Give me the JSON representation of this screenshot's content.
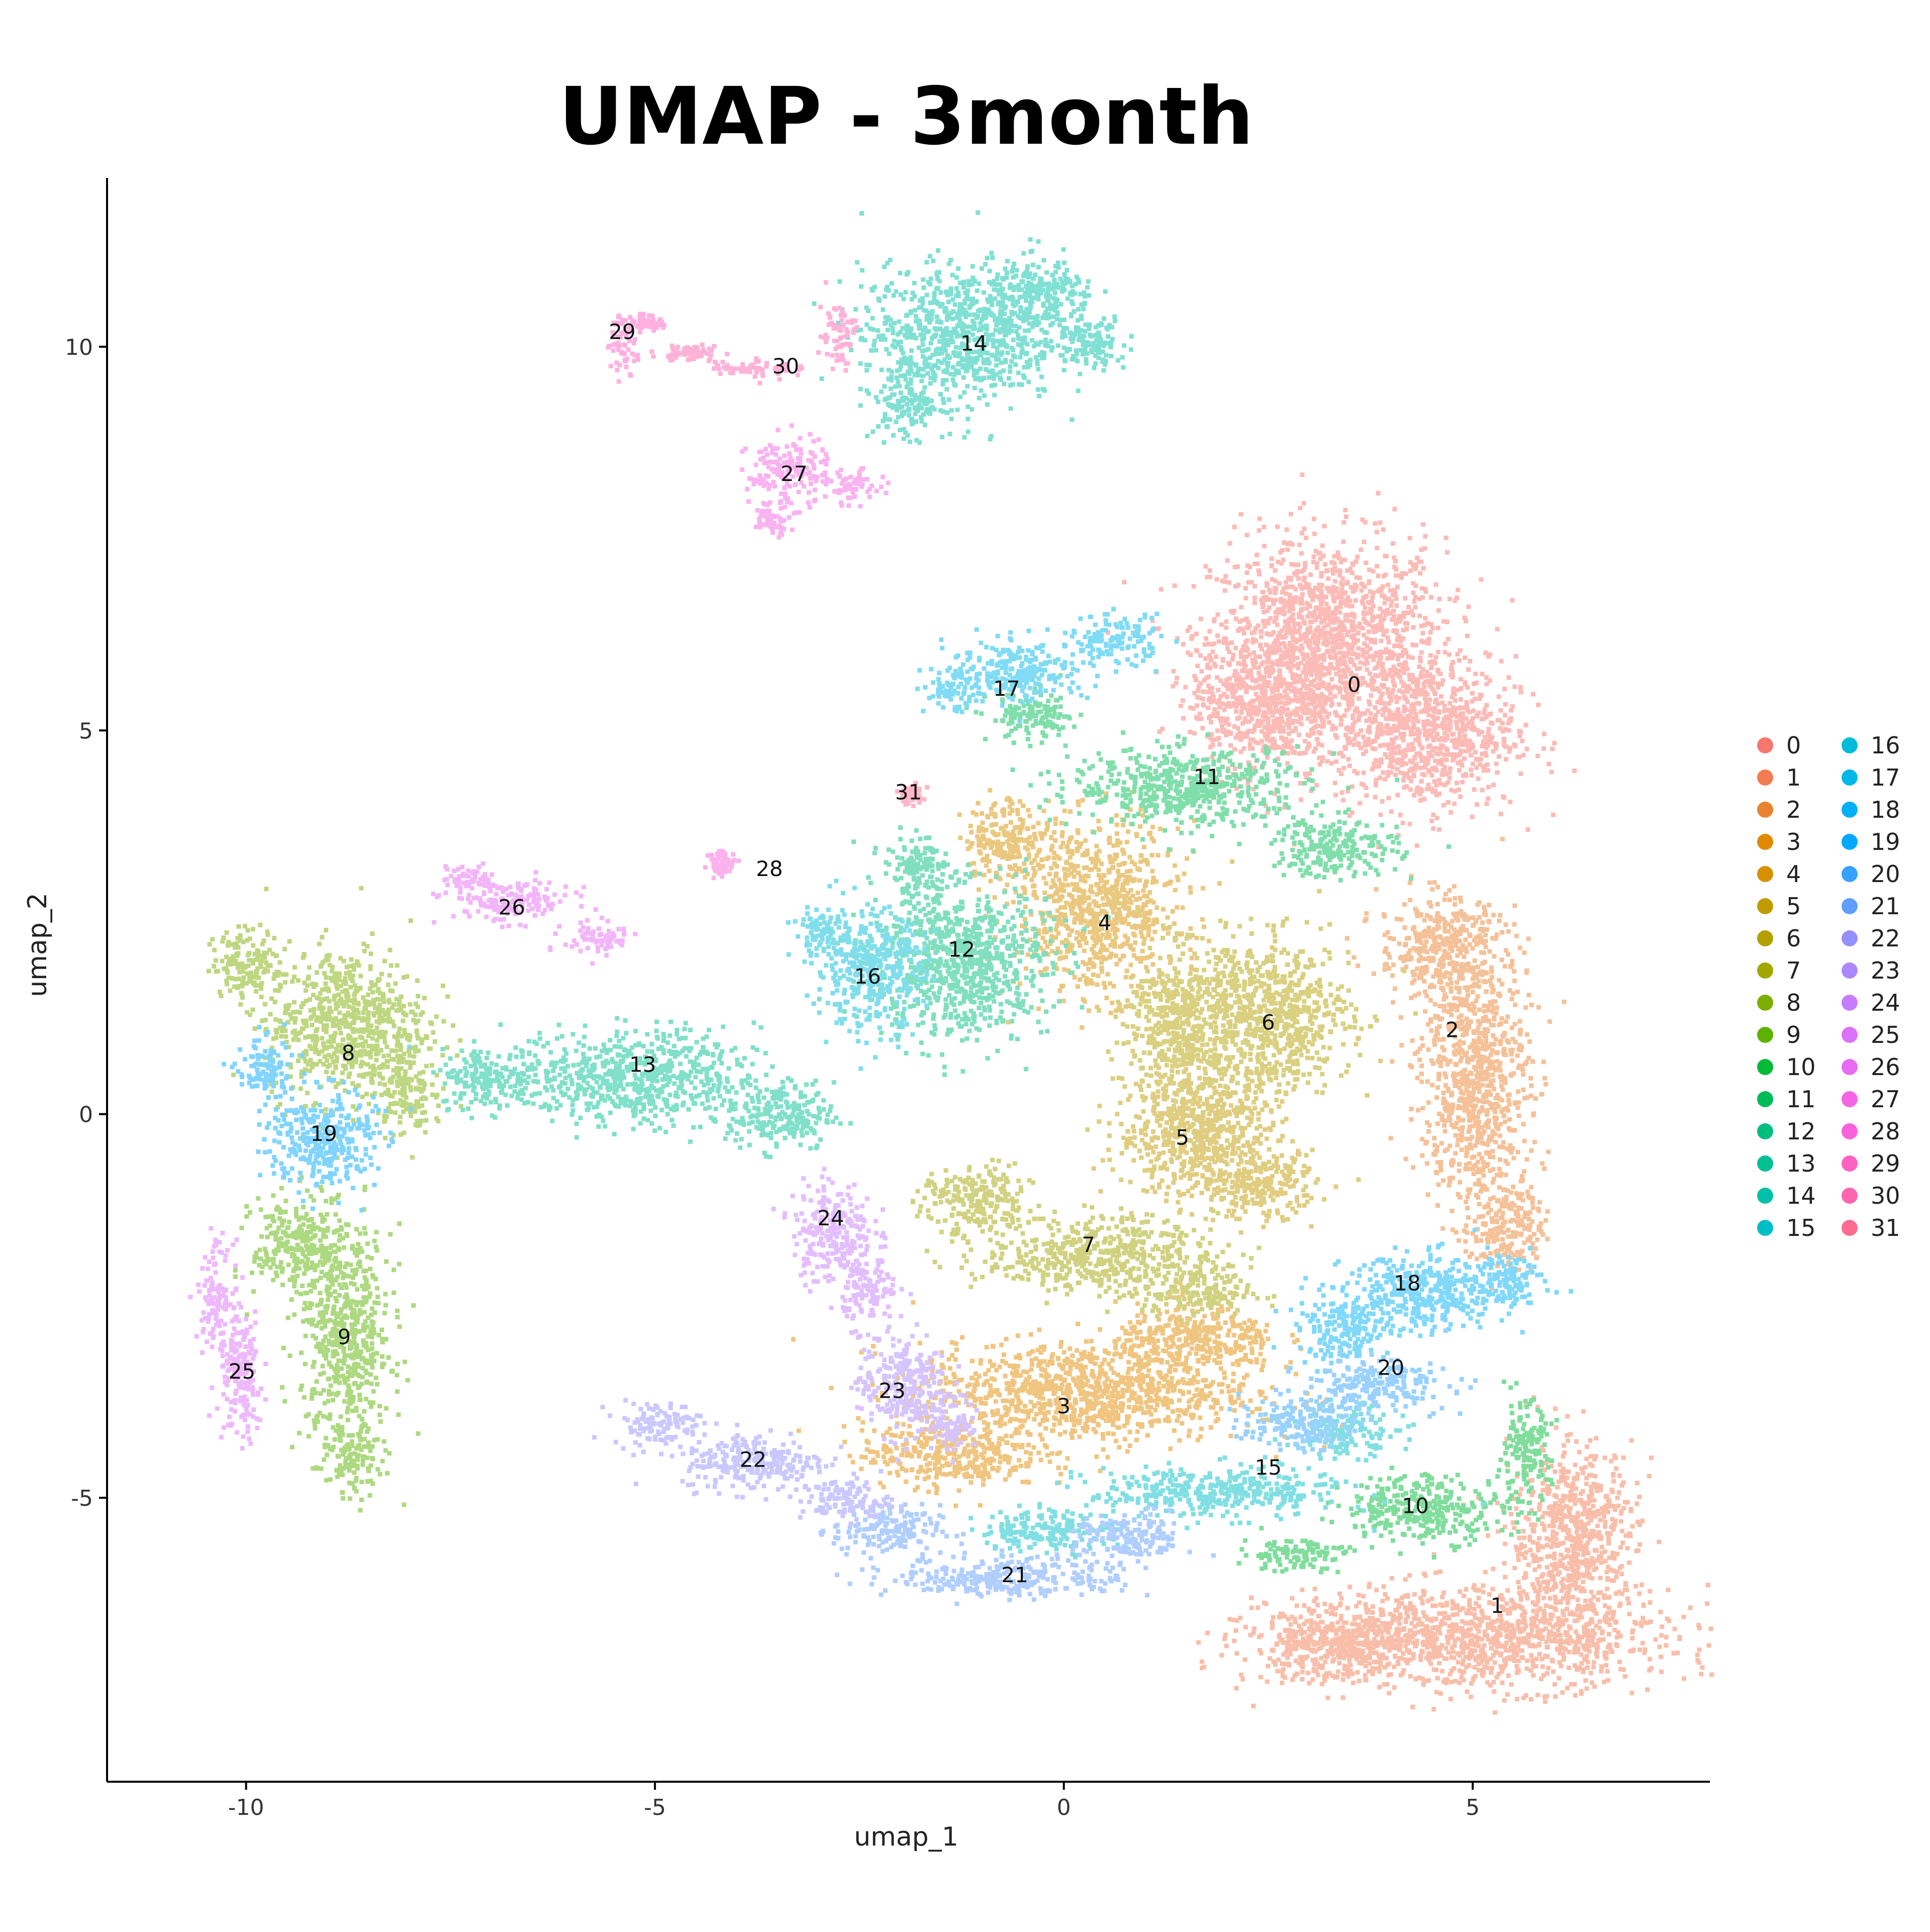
{
  "chart_data": {
    "type": "scatter",
    "title": "UMAP - 3month",
    "xlabel": "umap_1",
    "ylabel": "umap_2",
    "xlim": [
      -11.7,
      7.9
    ],
    "ylim": [
      -8.7,
      12.2
    ],
    "xticks": [
      -10,
      -5,
      0,
      5
    ],
    "xtick_labels": [
      "-10",
      "-5",
      "0",
      "5"
    ],
    "yticks": [
      -5,
      0,
      5,
      10
    ],
    "ytick_labels": [
      "-5",
      "0",
      "5",
      "10"
    ],
    "grid": false,
    "legend_position": "right",
    "legend_columns": 2,
    "clusters": [
      {
        "name": "0",
        "color": "#F8766D",
        "label_pos": [
          3.55,
          5.6
        ]
      },
      {
        "name": "1",
        "color": "#F27D52",
        "label_pos": [
          5.3,
          -6.4
        ]
      },
      {
        "name": "2",
        "color": "#EA8331",
        "label_pos": [
          4.75,
          1.1
        ]
      },
      {
        "name": "3",
        "color": "#E18A00",
        "label_pos": [
          0.0,
          -3.8
        ]
      },
      {
        "name": "4",
        "color": "#D79000",
        "label_pos": [
          0.5,
          2.5
        ]
      },
      {
        "name": "5",
        "color": "#C09B00",
        "label_pos": [
          1.45,
          -0.3
        ]
      },
      {
        "name": "6",
        "color": "#B3A000",
        "label_pos": [
          2.5,
          1.2
        ]
      },
      {
        "name": "7",
        "color": "#A3A500",
        "label_pos": [
          0.3,
          -1.7
        ]
      },
      {
        "name": "8",
        "color": "#7CAE00",
        "label_pos": [
          -8.75,
          0.8
        ]
      },
      {
        "name": "9",
        "color": "#5BB300",
        "label_pos": [
          -8.8,
          -2.9
        ]
      },
      {
        "name": "10",
        "color": "#00BA38",
        "label_pos": [
          4.3,
          -5.1
        ]
      },
      {
        "name": "11",
        "color": "#00BC56",
        "label_pos": [
          1.75,
          4.4
        ]
      },
      {
        "name": "12",
        "color": "#00BF7D",
        "label_pos": [
          -1.25,
          2.15
        ]
      },
      {
        "name": "13",
        "color": "#00C094",
        "label_pos": [
          -5.15,
          0.65
        ]
      },
      {
        "name": "14",
        "color": "#00C1A7",
        "label_pos": [
          -1.1,
          10.05
        ]
      },
      {
        "name": "15",
        "color": "#00BFC4",
        "label_pos": [
          2.5,
          -4.6
        ]
      },
      {
        "name": "16",
        "color": "#00BCD8",
        "label_pos": [
          -2.4,
          1.8
        ]
      },
      {
        "name": "17",
        "color": "#00B7E8",
        "label_pos": [
          -0.7,
          5.55
        ]
      },
      {
        "name": "18",
        "color": "#00B0F6",
        "label_pos": [
          4.2,
          -2.2
        ]
      },
      {
        "name": "19",
        "color": "#00A9FF",
        "label_pos": [
          -9.05,
          -0.25
        ]
      },
      {
        "name": "20",
        "color": "#35A2FF",
        "label_pos": [
          4.0,
          -3.3
        ]
      },
      {
        "name": "21",
        "color": "#619CFF",
        "label_pos": [
          -0.6,
          -6.0
        ]
      },
      {
        "name": "22",
        "color": "#9590FF",
        "label_pos": [
          -3.8,
          -4.5
        ]
      },
      {
        "name": "23",
        "color": "#AC88FF",
        "label_pos": [
          -2.1,
          -3.6
        ]
      },
      {
        "name": "24",
        "color": "#C77CFF",
        "label_pos": [
          -2.85,
          -1.35
        ]
      },
      {
        "name": "25",
        "color": "#DC71FA",
        "label_pos": [
          -10.05,
          -3.35
        ]
      },
      {
        "name": "26",
        "color": "#E76BF3",
        "label_pos": [
          -6.75,
          2.7
        ]
      },
      {
        "name": "27",
        "color": "#F564E3",
        "label_pos": [
          -3.3,
          8.35
        ]
      },
      {
        "name": "28",
        "color": "#FA62DB",
        "label_pos": [
          -3.6,
          3.2
        ]
      },
      {
        "name": "29",
        "color": "#FF61C3",
        "label_pos": [
          -5.4,
          10.2
        ]
      },
      {
        "name": "30",
        "color": "#FF64B0",
        "label_pos": [
          -3.4,
          9.75
        ]
      },
      {
        "name": "31",
        "color": "#FF6C91",
        "label_pos": [
          -1.9,
          4.2
        ]
      }
    ]
  }
}
